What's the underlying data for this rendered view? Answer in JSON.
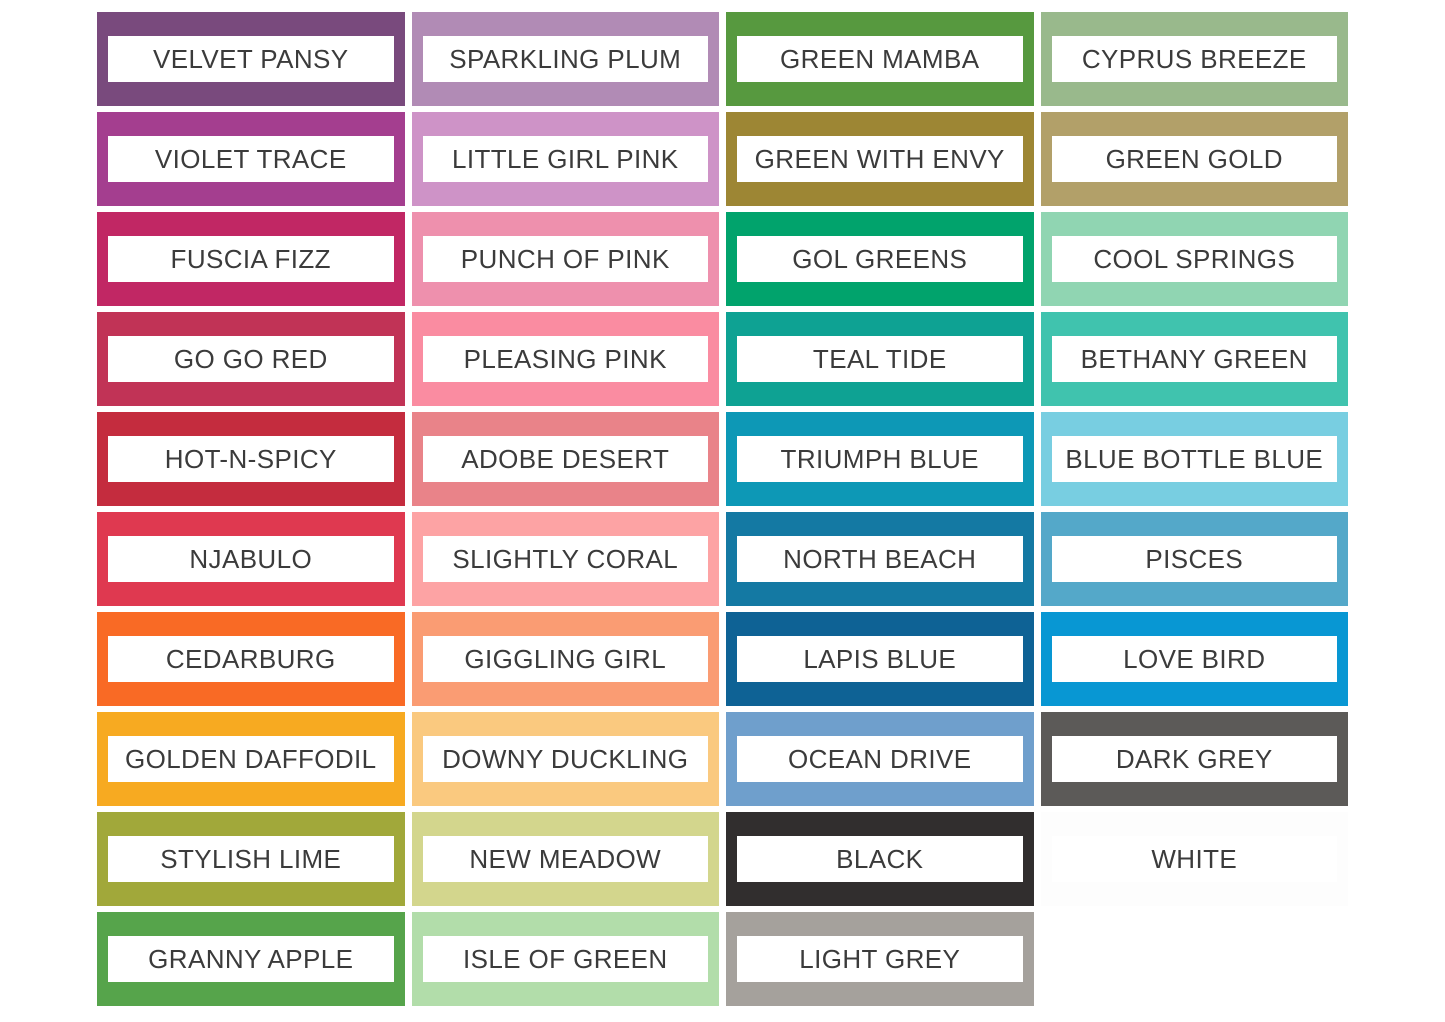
{
  "page": {
    "title": "Color palette swatch grid",
    "background": "#ffffff"
  },
  "palette": {
    "columns": 4,
    "rows": 10,
    "label_bg": "#ffffff",
    "label_text_color": "#3b3b3b",
    "swatches": [
      {
        "name": "VELVET PANSY",
        "color": "#794a7d"
      },
      {
        "name": "SPARKLING PLUM",
        "color": "#b18bb5"
      },
      {
        "name": "GREEN MAMBA",
        "color": "#57993f"
      },
      {
        "name": "CYPRUS BREEZE",
        "color": "#99b98c"
      },
      {
        "name": "VIOLET TRACE",
        "color": "#a43e8f"
      },
      {
        "name": "LITTLE GIRL PINK",
        "color": "#ce93c7"
      },
      {
        "name": "GREEN WITH ENVY",
        "color": "#9d8634"
      },
      {
        "name": "GREEN GOLD",
        "color": "#b2a069"
      },
      {
        "name": "FUSCIA FIZZ",
        "color": "#c12764"
      },
      {
        "name": "PUNCH OF PINK",
        "color": "#ee90ad"
      },
      {
        "name": "GOL GREENS",
        "color": "#01a36c"
      },
      {
        "name": "COOL SPRINGS",
        "color": "#90d5b2"
      },
      {
        "name": "GO GO RED",
        "color": "#c13356"
      },
      {
        "name": "PLEASING PINK",
        "color": "#fa8ca1"
      },
      {
        "name": "TEAL TIDE",
        "color": "#0ea293"
      },
      {
        "name": "BETHANY GREEN",
        "color": "#40c3ae"
      },
      {
        "name": "HOT-N-SPICY",
        "color": "#c42c3e"
      },
      {
        "name": "ADOBE DESERT",
        "color": "#e98389"
      },
      {
        "name": "TRIUMPH BLUE",
        "color": "#0d98b6"
      },
      {
        "name": "BLUE BOTTLE BLUE",
        "color": "#78cee1"
      },
      {
        "name": "NJABULO",
        "color": "#df3950"
      },
      {
        "name": "SLIGHTLY CORAL",
        "color": "#fda3a4"
      },
      {
        "name": "NORTH BEACH",
        "color": "#1479a3"
      },
      {
        "name": "PISCES",
        "color": "#54a8c9"
      },
      {
        "name": "CEDARBURG",
        "color": "#f96a25"
      },
      {
        "name": "GIGGLING GIRL",
        "color": "#fa9c73"
      },
      {
        "name": "LAPIS BLUE",
        "color": "#0e6295"
      },
      {
        "name": "LOVE BIRD",
        "color": "#0897d3"
      },
      {
        "name": "GOLDEN DAFFODIL",
        "color": "#f7aa21"
      },
      {
        "name": "DOWNY DUCKLING",
        "color": "#fac97f"
      },
      {
        "name": "OCEAN DRIVE",
        "color": "#6f9fcc"
      },
      {
        "name": "DARK GREY",
        "color": "#5c5a58"
      },
      {
        "name": "STYLISH LIME",
        "color": "#a1a83a"
      },
      {
        "name": "NEW MEADOW",
        "color": "#d3d68d"
      },
      {
        "name": "BLACK",
        "color": "#312e2e"
      },
      {
        "name": "WHITE",
        "color": "#fdfdfd"
      },
      {
        "name": "GRANNY APPLE",
        "color": "#56a44b"
      },
      {
        "name": "ISLE OF GREEN",
        "color": "#b2ddaa"
      },
      {
        "name": "LIGHT GREY",
        "color": "#a5a19c"
      },
      {
        "name": "",
        "color": ""
      }
    ]
  }
}
